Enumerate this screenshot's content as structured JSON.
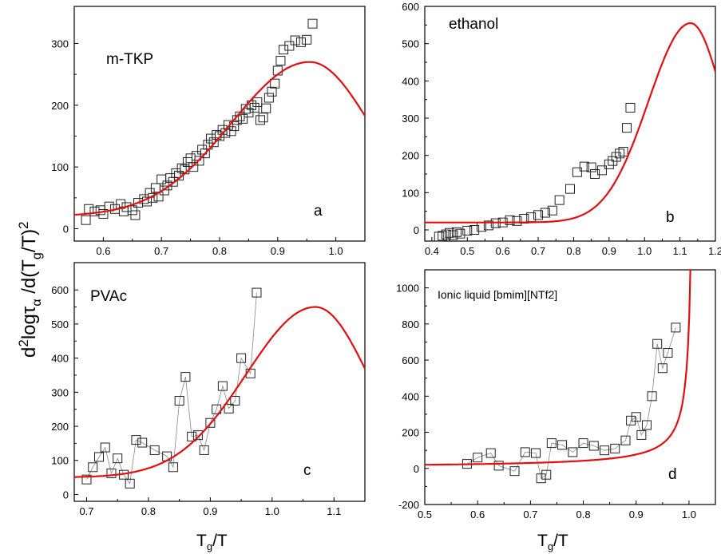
{
  "ylabel": {
    "prefix": "d",
    "p1": "2",
    "mid1": "log",
    "tau": "τ",
    "alpha": "α",
    "mid2": " /d(T",
    "g": "g",
    "mid3": "/T)",
    "p2": "2"
  },
  "xlabel": {
    "t": "T",
    "g": "g",
    "rest": "/T"
  },
  "curve_color": "#e01010",
  "marker": "open-square",
  "chart_data": [
    {
      "id": "a",
      "type": "scatter",
      "title": "m-TKP",
      "letter": "a",
      "xlim": [
        0.55,
        1.05
      ],
      "ylim": [
        -20,
        360
      ],
      "xticks": [
        0.6,
        0.7,
        0.8,
        0.9,
        1.0
      ],
      "yticks": [
        0,
        100,
        200,
        300
      ],
      "xtick_labels": [
        "0.6",
        "0.7",
        "0.8",
        "0.9",
        "1.0"
      ],
      "ytick_labels": [
        "0",
        "100",
        "200",
        "300"
      ],
      "fit_peak": [
        0.955,
        270
      ],
      "fit_width": 0.18,
      "fit_offset": 20,
      "points": [
        [
          0.57,
          14
        ],
        [
          0.575,
          32
        ],
        [
          0.585,
          28
        ],
        [
          0.595,
          30
        ],
        [
          0.6,
          24
        ],
        [
          0.61,
          36
        ],
        [
          0.62,
          32
        ],
        [
          0.63,
          40
        ],
        [
          0.635,
          28
        ],
        [
          0.64,
          35
        ],
        [
          0.65,
          30
        ],
        [
          0.655,
          22
        ],
        [
          0.66,
          42
        ],
        [
          0.67,
          48
        ],
        [
          0.675,
          44
        ],
        [
          0.68,
          58
        ],
        [
          0.685,
          50
        ],
        [
          0.69,
          66
        ],
        [
          0.695,
          52
        ],
        [
          0.7,
          80
        ],
        [
          0.705,
          62
        ],
        [
          0.71,
          70
        ],
        [
          0.715,
          82
        ],
        [
          0.72,
          76
        ],
        [
          0.725,
          90
        ],
        [
          0.73,
          86
        ],
        [
          0.735,
          98
        ],
        [
          0.74,
          96
        ],
        [
          0.745,
          108
        ],
        [
          0.75,
          114
        ],
        [
          0.755,
          100
        ],
        [
          0.76,
          118
        ],
        [
          0.765,
          110
        ],
        [
          0.77,
          128
        ],
        [
          0.775,
          122
        ],
        [
          0.78,
          136
        ],
        [
          0.785,
          146
        ],
        [
          0.79,
          140
        ],
        [
          0.795,
          152
        ],
        [
          0.8,
          150
        ],
        [
          0.805,
          160
        ],
        [
          0.81,
          155
        ],
        [
          0.815,
          168
        ],
        [
          0.82,
          158
        ],
        [
          0.825,
          166
        ],
        [
          0.83,
          176
        ],
        [
          0.835,
          182
        ],
        [
          0.84,
          178
        ],
        [
          0.845,
          194
        ],
        [
          0.85,
          188
        ],
        [
          0.855,
          200
        ],
        [
          0.86,
          196
        ],
        [
          0.865,
          205
        ],
        [
          0.87,
          176
        ],
        [
          0.875,
          180
        ],
        [
          0.88,
          195
        ],
        [
          0.885,
          212
        ],
        [
          0.89,
          222
        ],
        [
          0.895,
          235
        ],
        [
          0.9,
          256
        ],
        [
          0.905,
          272
        ],
        [
          0.91,
          290
        ],
        [
          0.92,
          296
        ],
        [
          0.93,
          305
        ],
        [
          0.94,
          302
        ],
        [
          0.95,
          306
        ],
        [
          0.96,
          332
        ]
      ],
      "connect": false
    },
    {
      "id": "b",
      "type": "scatter",
      "title": "ethanol",
      "letter": "b",
      "xlim": [
        0.38,
        1.2
      ],
      "ylim": [
        -30,
        600
      ],
      "xticks": [
        0.4,
        0.5,
        0.6,
        0.7,
        0.8,
        0.9,
        1.0,
        1.1,
        1.2
      ],
      "yticks": [
        0,
        100,
        200,
        300,
        400,
        500,
        600
      ],
      "xtick_labels": [
        "0.4",
        "0.5",
        "0.6",
        "0.7",
        "0.8",
        "0.9",
        "1.0",
        "1.1",
        "1.2"
      ],
      "ytick_labels": [
        "0",
        "100",
        "200",
        "300",
        "400",
        "500",
        "600"
      ],
      "fit_peak": [
        1.13,
        555
      ],
      "fit_width": 0.16,
      "fit_offset": 20,
      "points": [
        [
          0.42,
          -18
        ],
        [
          0.43,
          -16
        ],
        [
          0.44,
          -12
        ],
        [
          0.45,
          -8
        ],
        [
          0.46,
          -14
        ],
        [
          0.47,
          -6
        ],
        [
          0.48,
          -10
        ],
        [
          0.5,
          -2
        ],
        [
          0.52,
          0
        ],
        [
          0.54,
          8
        ],
        [
          0.56,
          12
        ],
        [
          0.58,
          18
        ],
        [
          0.6,
          20
        ],
        [
          0.62,
          26
        ],
        [
          0.64,
          24
        ],
        [
          0.66,
          30
        ],
        [
          0.68,
          34
        ],
        [
          0.7,
          40
        ],
        [
          0.72,
          46
        ],
        [
          0.74,
          52
        ],
        [
          0.76,
          80
        ],
        [
          0.79,
          110
        ],
        [
          0.81,
          155
        ],
        [
          0.83,
          170
        ],
        [
          0.85,
          168
        ],
        [
          0.86,
          150
        ],
        [
          0.88,
          160
        ],
        [
          0.9,
          176
        ],
        [
          0.91,
          185
        ],
        [
          0.92,
          196
        ],
        [
          0.93,
          205
        ],
        [
          0.94,
          210
        ],
        [
          0.95,
          274
        ],
        [
          0.96,
          328
        ]
      ],
      "connect": false
    },
    {
      "id": "c",
      "type": "scatter",
      "title": "PVAc",
      "letter": "c",
      "xlim": [
        0.68,
        1.15
      ],
      "ylim": [
        -20,
        680
      ],
      "xticks": [
        0.7,
        0.8,
        0.9,
        1.0,
        1.1
      ],
      "yticks": [
        0,
        100,
        200,
        300,
        400,
        500,
        600
      ],
      "xtick_labels": [
        "0.7",
        "0.8",
        "0.9",
        "1.0",
        "1.1"
      ],
      "ytick_labels": [
        "0",
        "100",
        "200",
        "300",
        "400",
        "500",
        "600"
      ],
      "fit_peak": [
        1.07,
        550
      ],
      "fit_width": 0.15,
      "fit_offset": 50,
      "points": [
        [
          0.7,
          44
        ],
        [
          0.71,
          80
        ],
        [
          0.72,
          110
        ],
        [
          0.73,
          138
        ],
        [
          0.74,
          62
        ],
        [
          0.75,
          106
        ],
        [
          0.76,
          58
        ],
        [
          0.77,
          32
        ],
        [
          0.78,
          160
        ],
        [
          0.79,
          152
        ],
        [
          0.81,
          130
        ],
        [
          0.83,
          112
        ],
        [
          0.84,
          80
        ],
        [
          0.85,
          275
        ],
        [
          0.86,
          345
        ],
        [
          0.87,
          170
        ],
        [
          0.88,
          174
        ],
        [
          0.89,
          130
        ],
        [
          0.9,
          210
        ],
        [
          0.91,
          250
        ],
        [
          0.92,
          318
        ],
        [
          0.93,
          252
        ],
        [
          0.94,
          275
        ],
        [
          0.95,
          400
        ],
        [
          0.965,
          355
        ],
        [
          0.975,
          592
        ]
      ],
      "connect": true
    },
    {
      "id": "d",
      "type": "scatter",
      "title": "Ionic liquid [bmim][NTf2]",
      "letter": "d",
      "xlim": [
        0.5,
        1.05
      ],
      "ylim": [
        -200,
        1100
      ],
      "xticks": [
        0.5,
        0.6,
        0.7,
        0.8,
        0.9,
        1.0
      ],
      "yticks": [
        -200,
        0,
        200,
        400,
        600,
        800,
        1000
      ],
      "xtick_labels": [
        "0.5",
        "0.6",
        "0.7",
        "0.8",
        "0.9",
        "1.0"
      ],
      "ytick_labels": [
        "-200",
        "0",
        "200",
        "400",
        "600",
        "800",
        "1000"
      ],
      "fit_pole": 1.01,
      "points": [
        [
          0.58,
          25
        ],
        [
          0.6,
          60
        ],
        [
          0.625,
          85
        ],
        [
          0.64,
          15
        ],
        [
          0.67,
          -15
        ],
        [
          0.69,
          90
        ],
        [
          0.71,
          85
        ],
        [
          0.72,
          -55
        ],
        [
          0.73,
          -35
        ],
        [
          0.74,
          140
        ],
        [
          0.76,
          130
        ],
        [
          0.78,
          90
        ],
        [
          0.8,
          140
        ],
        [
          0.82,
          125
        ],
        [
          0.84,
          100
        ],
        [
          0.86,
          110
        ],
        [
          0.88,
          155
        ],
        [
          0.89,
          265
        ],
        [
          0.9,
          285
        ],
        [
          0.91,
          185
        ],
        [
          0.92,
          240
        ],
        [
          0.93,
          400
        ],
        [
          0.94,
          690
        ],
        [
          0.95,
          555
        ],
        [
          0.96,
          640
        ],
        [
          0.975,
          780
        ]
      ],
      "connect": true
    }
  ]
}
